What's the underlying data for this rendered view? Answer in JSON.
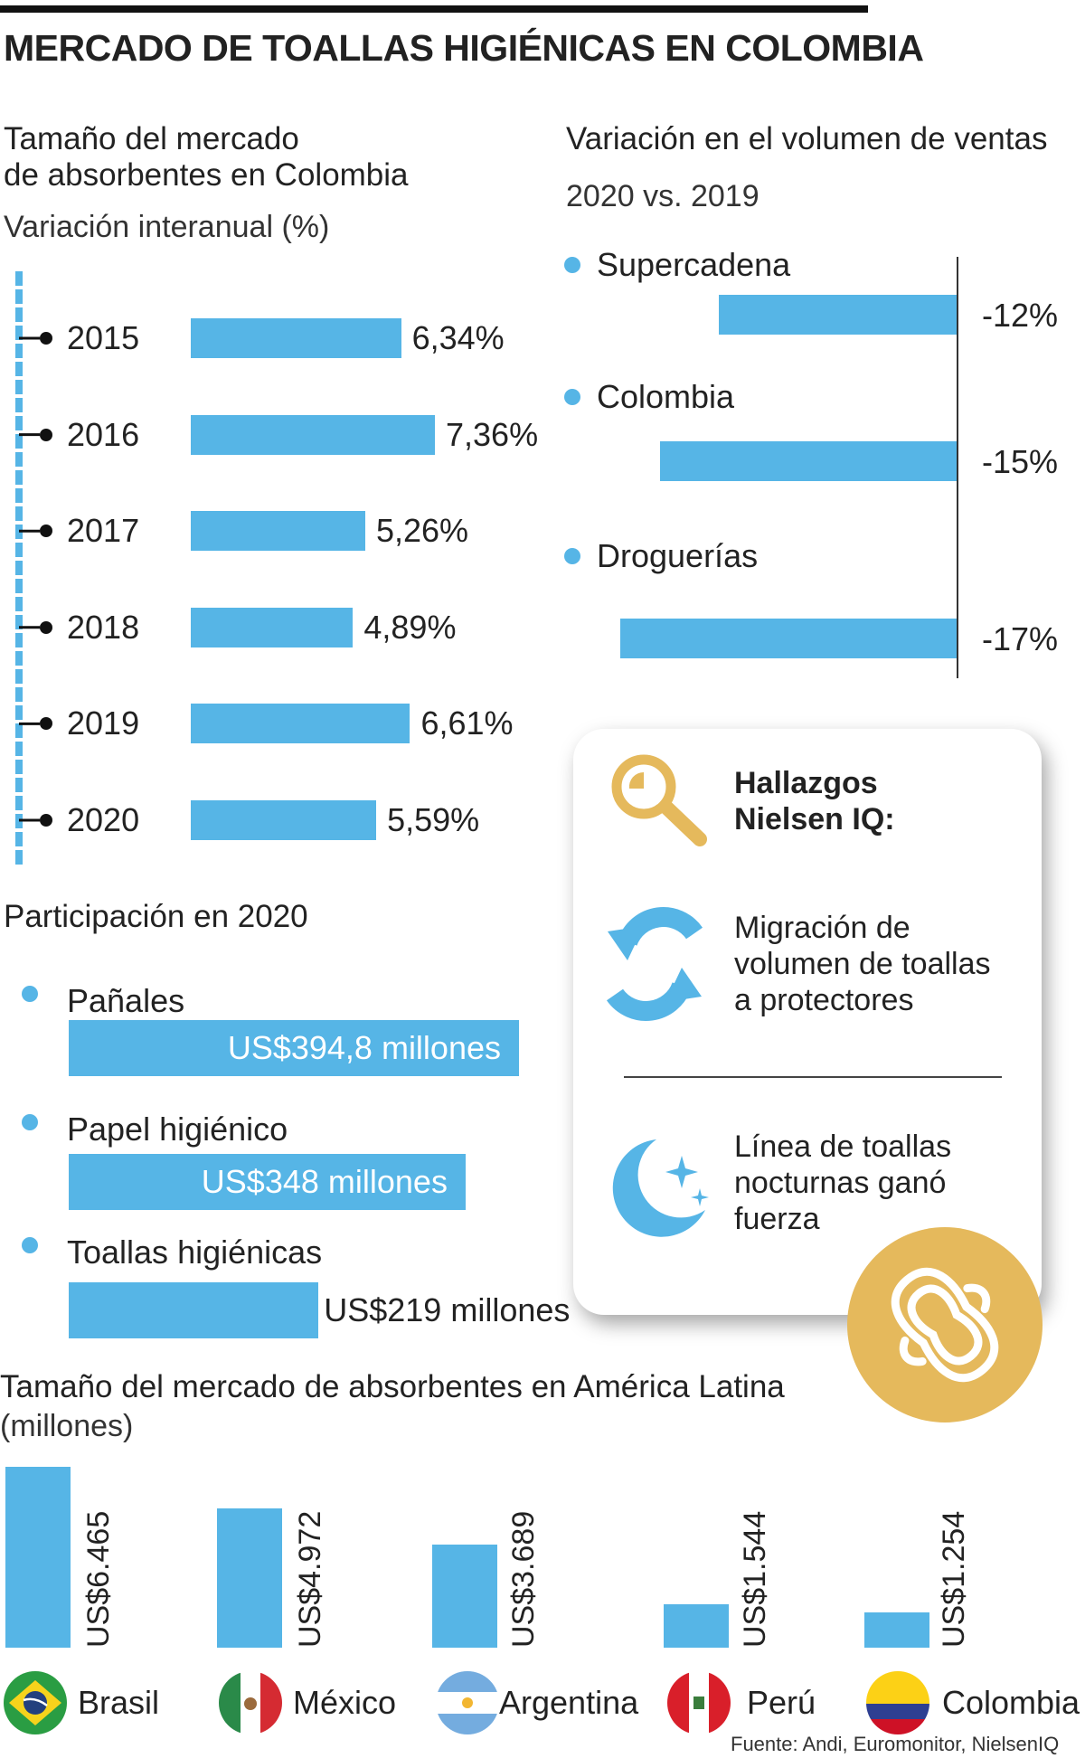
{
  "title": "MERCADO DE TOALLAS HIGIÉNICAS EN COLOMBIA",
  "colors": {
    "bar": "#56b5e6",
    "gold": "#e5b95c",
    "text": "#222222"
  },
  "chart_data": [
    {
      "type": "bar",
      "orientation": "horizontal",
      "title": "Tamaño del mercado de absorbentes en Colombia",
      "title_lines": [
        "Tamaño del mercado",
        "de absorbentes en Colombia"
      ],
      "subtitle": "Variación interanual (%)",
      "categories": [
        "2015",
        "2016",
        "2017",
        "2018",
        "2019",
        "2020"
      ],
      "values": [
        6.34,
        7.36,
        5.26,
        4.89,
        6.61,
        5.59
      ],
      "value_labels": [
        "6,34%",
        "7,36%",
        "5,26%",
        "4,89%",
        "6,61%",
        "5,59%"
      ],
      "xlim": [
        0,
        7.36
      ]
    },
    {
      "type": "bar",
      "orientation": "horizontal",
      "title": "Variación en el volumen de ventas",
      "subtitle": "2020 vs. 2019",
      "categories": [
        "Supercadena",
        "Colombia",
        "Droguerías"
      ],
      "values": [
        -12,
        -15,
        -17
      ],
      "value_labels": [
        "-12%",
        "-15%",
        "-17%"
      ],
      "xlim": [
        -17,
        0
      ]
    },
    {
      "type": "bar",
      "orientation": "horizontal",
      "title": "Participación en 2020",
      "categories": [
        "Pañales",
        "Papel higiénico",
        "Toallas higiénicas"
      ],
      "values": [
        394.8,
        348,
        219
      ],
      "value_labels": [
        "US$394,8 millones",
        "US$348 millones",
        "US$219 millones"
      ],
      "xlim": [
        0,
        394.8
      ]
    },
    {
      "type": "bar",
      "orientation": "vertical",
      "title": "Tamaño del mercado de absorbentes en América Latina",
      "subtitle": "(millones)",
      "categories": [
        "Brasil",
        "México",
        "Argentina",
        "Perú",
        "Colombia"
      ],
      "values": [
        6465,
        4972,
        3689,
        1544,
        1254
      ],
      "value_labels": [
        "US$6.465",
        "US$4.972",
        "US$3.689",
        "US$1.544",
        "US$1.254"
      ],
      "ylim": [
        0,
        6465
      ]
    }
  ],
  "findings": {
    "title_lines": [
      "Hallazgos",
      "Nielsen IQ:"
    ],
    "items": [
      {
        "icon": "cycle-arrows-icon",
        "lines": [
          "Migración de",
          "volumen de toallas",
          "a protectores"
        ]
      },
      {
        "icon": "moon-stars-icon",
        "lines": [
          "Línea de toallas",
          "nocturnas ganó",
          "fuerza"
        ]
      }
    ]
  },
  "source": "Fuente: Andi, Euromonitor, NielsenIQ"
}
